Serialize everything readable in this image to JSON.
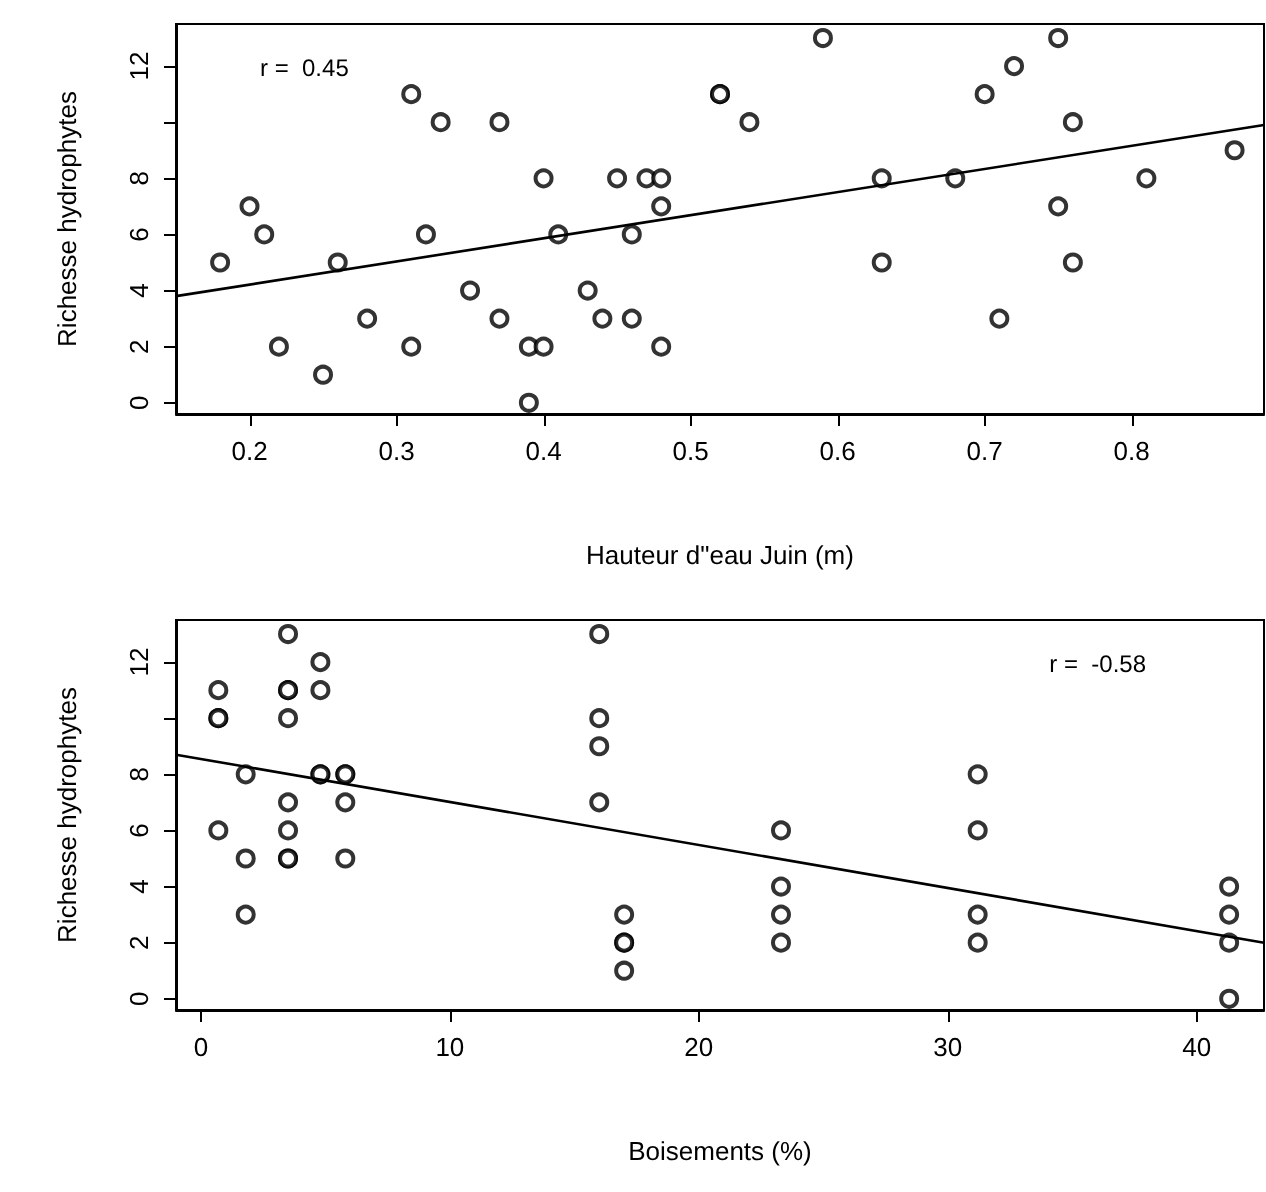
{
  "chart_data": [
    {
      "type": "scatter",
      "xlabel": "Hauteur d\"eau Juin (m)",
      "ylabel": "Richesse hydrophytes",
      "annotations": [
        "r =  0.45"
      ],
      "xlim": [
        0.15,
        0.89
      ],
      "xticks": [
        0.2,
        0.3,
        0.4,
        0.5,
        0.6,
        0.7,
        0.8
      ],
      "ylim": [
        -0.4,
        13.5
      ],
      "yticks": [
        0,
        2,
        4,
        6,
        8,
        {
          "value": 10,
          "label": null
        },
        12
      ],
      "grid": false,
      "marker": "circle",
      "series": [
        {
          "color": "#000000",
          "x": [
            0.18,
            0.2,
            0.21,
            0.22,
            0.25,
            0.26,
            0.28,
            0.31,
            0.31,
            0.32,
            0.33,
            0.35,
            0.37,
            0.37,
            0.39,
            0.39,
            0.4,
            0.4,
            0.41,
            0.43,
            0.44,
            0.45,
            0.46,
            0.46,
            0.47,
            0.48,
            0.48,
            0.48,
            0.52,
            0.52,
            0.54,
            0.59,
            0.63,
            0.63,
            0.68,
            0.7,
            0.71,
            0.72,
            0.75,
            0.75,
            0.76,
            0.76,
            0.81,
            0.87
          ],
          "values": [
            5,
            7,
            6,
            2,
            1,
            5,
            3,
            2,
            11,
            6,
            10,
            4,
            10,
            3,
            0,
            2,
            2,
            8,
            6,
            4,
            3,
            8,
            6,
            3,
            8,
            8,
            7,
            2,
            11,
            11,
            10,
            13,
            8,
            5,
            8,
            11,
            3,
            12,
            13,
            7,
            10,
            5,
            8,
            9
          ]
        },
        {
          "type": "line",
          "color": "#000000",
          "marker": "none",
          "x": [
            0.15,
            0.89
          ],
          "values": [
            3.8,
            9.9
          ]
        }
      ]
    },
    {
      "type": "scatter",
      "xlabel": "Boisements (%)",
      "ylabel": "Richesse hydrophytes",
      "annotations": [
        "r =  -0.58"
      ],
      "xlim": [
        -1,
        42.7
      ],
      "xticks": [
        0,
        10,
        20,
        30,
        40
      ],
      "ylim": [
        -0.4,
        13.5
      ],
      "yticks": [
        0,
        2,
        4,
        6,
        8,
        {
          "value": 10,
          "label": null
        },
        12
      ],
      "grid": false,
      "marker": "circle",
      "series": [
        {
          "color": "#000000",
          "x": [
            0.7,
            0.7,
            0.7,
            0.7,
            1.8,
            1.8,
            1.8,
            3.5,
            3.5,
            3.5,
            3.5,
            3.5,
            3.5,
            3.5,
            3.5,
            4.8,
            4.8,
            4.8,
            4.8,
            5.8,
            5.8,
            5.8,
            5.8,
            16,
            16,
            16,
            16,
            17,
            17,
            17,
            17,
            23.3,
            23.3,
            23.3,
            23.3,
            31.2,
            31.2,
            31.2,
            31.2,
            41.3,
            41.3,
            41.3,
            41.3
          ],
          "values": [
            11,
            10,
            10,
            6,
            8,
            5,
            3,
            13,
            11,
            11,
            10,
            7,
            6,
            5,
            5,
            12,
            11,
            8,
            8,
            8,
            8,
            7,
            5,
            13,
            10,
            9,
            7,
            3,
            2,
            2,
            1,
            6,
            4,
            3,
            2,
            8,
            6,
            3,
            2,
            4,
            3,
            2,
            0
          ]
        },
        {
          "type": "line",
          "color": "#000000",
          "marker": "none",
          "x": [
            -1,
            42.7
          ],
          "values": [
            8.7,
            2.0
          ]
        }
      ]
    }
  ]
}
